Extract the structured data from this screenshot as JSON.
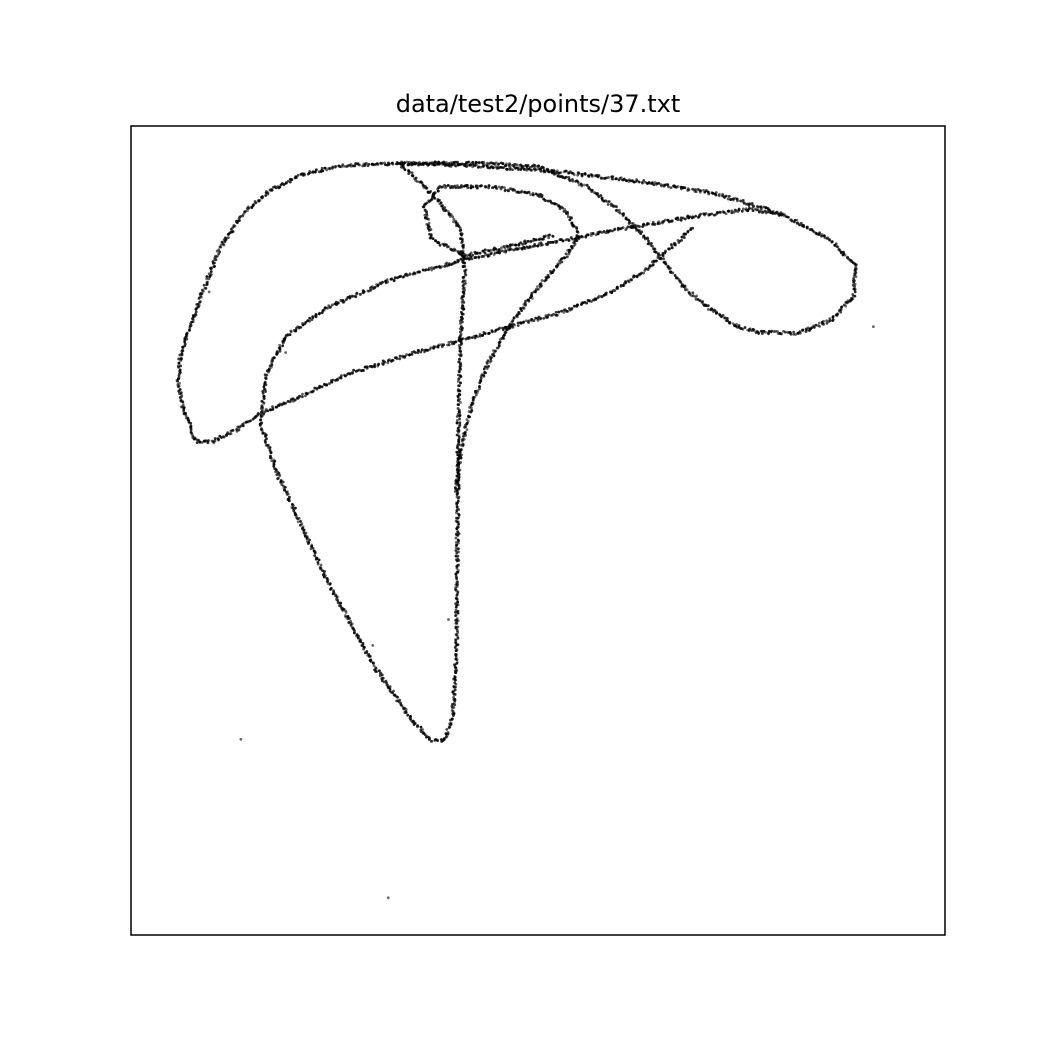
{
  "chart_data": {
    "type": "scatter",
    "title": "data/test2/points/37.txt",
    "xlabel": "",
    "ylabel": "",
    "axes_visible": false,
    "xlim": [
      0,
      1
    ],
    "ylim": [
      0,
      1
    ],
    "grid": false,
    "marker_color": "#000000",
    "series": [
      {
        "values_note": "",
        "curves": [
          [
            [
              0.064,
              0.651
            ],
            [
              0.058,
              0.68
            ],
            [
              0.06,
              0.71
            ],
            [
              0.07,
              0.745
            ],
            [
              0.086,
              0.79
            ],
            [
              0.11,
              0.85
            ],
            [
              0.136,
              0.89
            ],
            [
              0.17,
              0.92
            ],
            [
              0.21,
              0.94
            ],
            [
              0.26,
              0.951
            ],
            [
              0.33,
              0.954
            ],
            [
              0.42,
              0.951
            ],
            [
              0.53,
              0.943
            ],
            [
              0.63,
              0.931
            ],
            [
              0.72,
              0.916
            ],
            [
              0.8,
              0.891
            ],
            [
              0.86,
              0.858
            ],
            [
              0.89,
              0.828
            ],
            [
              0.888,
              0.79
            ],
            [
              0.86,
              0.76
            ],
            [
              0.82,
              0.744
            ],
            [
              0.77,
              0.745
            ],
            [
              0.74,
              0.755
            ],
            [
              0.71,
              0.775
            ],
            [
              0.68,
              0.8
            ],
            [
              0.655,
              0.832
            ],
            [
              0.63,
              0.864
            ],
            [
              0.6,
              0.895
            ],
            [
              0.56,
              0.925
            ],
            [
              0.5,
              0.95
            ],
            [
              0.43,
              0.954
            ],
            [
              0.33,
              0.954
            ]
          ],
          [
            [
              0.33,
              0.954
            ],
            [
              0.35,
              0.935
            ],
            [
              0.38,
              0.905
            ],
            [
              0.405,
              0.872
            ],
            [
              0.41,
              0.82
            ],
            [
              0.405,
              0.74
            ],
            [
              0.402,
              0.62
            ],
            [
              0.401,
              0.48
            ],
            [
              0.4,
              0.35
            ],
            [
              0.395,
              0.27
            ],
            [
              0.385,
              0.24
            ],
            [
              0.37,
              0.24
            ],
            [
              0.35,
              0.26
            ],
            [
              0.3,
              0.33
            ],
            [
              0.24,
              0.44
            ],
            [
              0.18,
              0.57
            ],
            [
              0.16,
              0.63
            ],
            [
              0.165,
              0.69
            ],
            [
              0.19,
              0.74
            ],
            [
              0.24,
              0.775
            ],
            [
              0.32,
              0.81
            ],
            [
              0.41,
              0.835
            ],
            [
              0.51,
              0.855
            ],
            [
              0.6,
              0.872
            ],
            [
              0.69,
              0.888
            ],
            [
              0.76,
              0.897
            ],
            [
              0.8,
              0.89
            ]
          ],
          [
            [
              0.064,
              0.651
            ],
            [
              0.08,
              0.61
            ],
            [
              0.1,
              0.61
            ],
            [
              0.13,
              0.625
            ],
            [
              0.16,
              0.645
            ],
            [
              0.2,
              0.662
            ],
            [
              0.27,
              0.695
            ],
            [
              0.35,
              0.72
            ],
            [
              0.44,
              0.745
            ],
            [
              0.53,
              0.77
            ],
            [
              0.59,
              0.795
            ],
            [
              0.63,
              0.82
            ],
            [
              0.67,
              0.856
            ],
            [
              0.69,
              0.875
            ]
          ],
          [
            [
              0.4,
              0.55
            ],
            [
              0.405,
              0.6
            ],
            [
              0.42,
              0.66
            ],
            [
              0.44,
              0.71
            ],
            [
              0.47,
              0.76
            ],
            [
              0.5,
              0.8
            ],
            [
              0.535,
              0.84
            ],
            [
              0.55,
              0.864
            ],
            [
              0.535,
              0.895
            ],
            [
              0.5,
              0.915
            ],
            [
              0.44,
              0.925
            ],
            [
              0.38,
              0.925
            ],
            [
              0.36,
              0.9
            ],
            [
              0.37,
              0.86
            ],
            [
              0.41,
              0.84
            ],
            [
              0.46,
              0.85
            ],
            [
              0.52,
              0.865
            ]
          ]
        ],
        "sparse_points": [
          [
            0.135,
            0.242
          ],
          [
            0.316,
            0.046
          ],
          [
            0.297,
            0.358
          ],
          [
            0.39,
            0.39
          ],
          [
            0.912,
            0.752
          ],
          [
            0.096,
            0.795
          ],
          [
            0.19,
            0.72
          ]
        ]
      }
    ]
  }
}
